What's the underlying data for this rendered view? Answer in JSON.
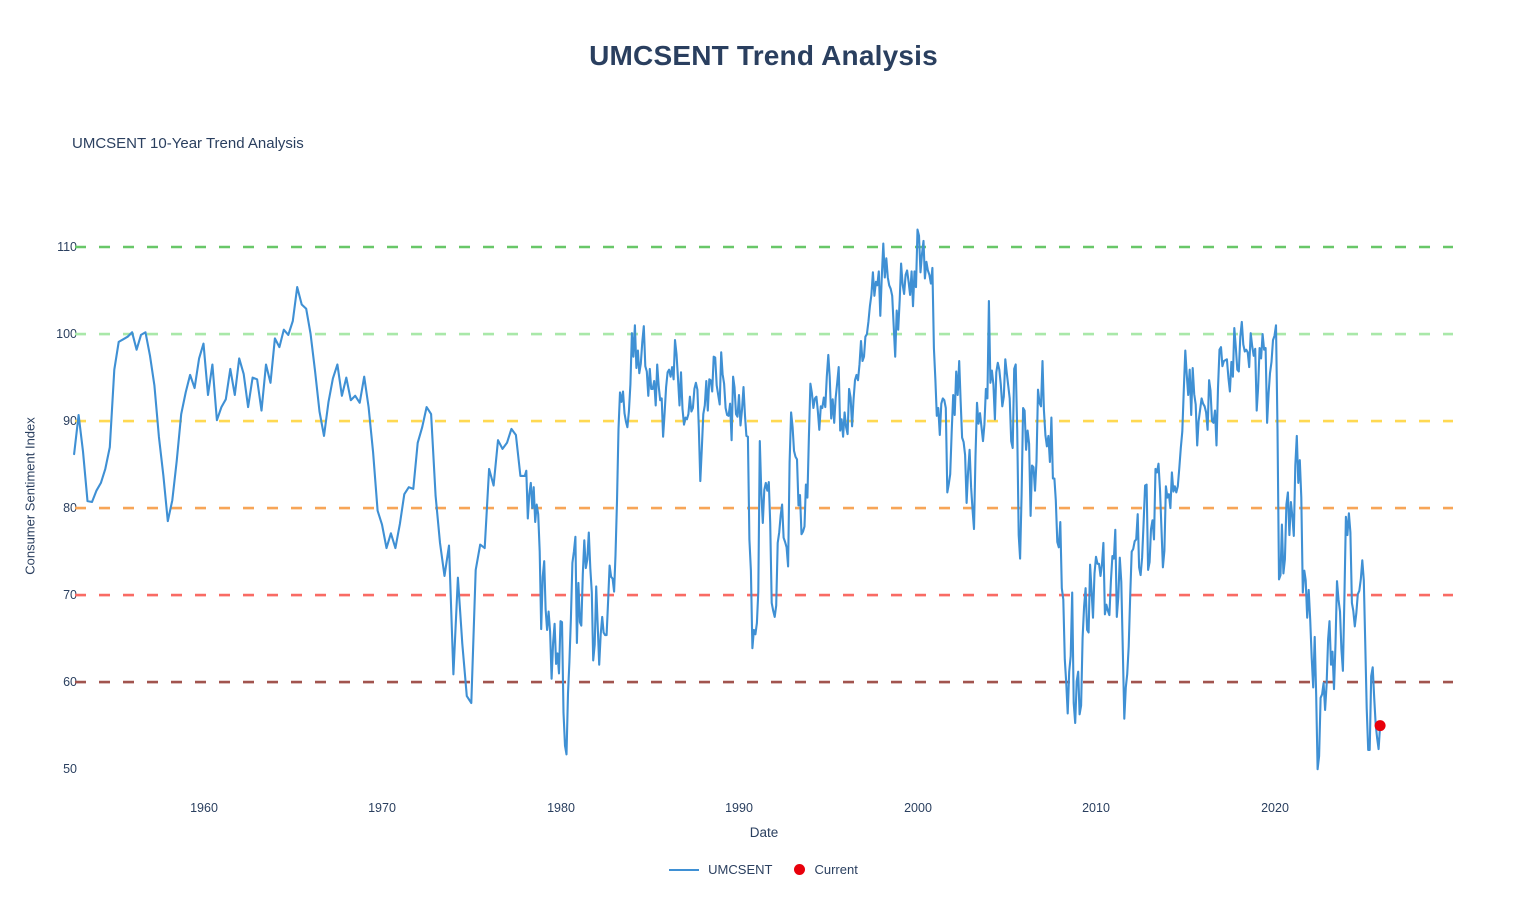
{
  "page": {
    "title": "UMCSENT Trend Analysis"
  },
  "chart": {
    "subtitle": "UMCSENT 10-Year Trend Analysis",
    "x_axis_label": "Date",
    "y_axis_label": "Consumer Sentiment Index"
  },
  "legend": {
    "series_label": "UMCSENT",
    "current_label": "Current"
  },
  "colors": {
    "title_text": "#2a3f5f",
    "tick_text": "#2a3f5f",
    "series_line": "#3f90d4",
    "current_dot": "#e8000b",
    "background": "#ffffff"
  },
  "chart_data": {
    "type": "line",
    "title": "UMCSENT 10-Year Trend Analysis",
    "xlabel": "Date",
    "ylabel": "Consumer Sentiment Index",
    "grid": false,
    "legend_position": "bottom-center",
    "x_ticks": [
      1960,
      1970,
      1980,
      1990,
      2000,
      2010,
      2020
    ],
    "y_ticks": [
      50,
      60,
      70,
      80,
      90,
      100,
      110
    ],
    "axes": {
      "x_min": 1952.8,
      "x_max": 2030.0,
      "y_min": 46.8,
      "y_max": 114.6
    },
    "reference_lines": [
      {
        "value": 110,
        "color": "#68c768"
      },
      {
        "value": 100,
        "color": "#a9e8a9"
      },
      {
        "value": 90,
        "color": "#ffd952"
      },
      {
        "value": 80,
        "color": "#f7a557"
      },
      {
        "value": 70,
        "color": "#f96b64"
      },
      {
        "value": 60,
        "color": "#a1544e"
      }
    ],
    "series": [
      {
        "name": "UMCSENT",
        "color": "#3f90d4",
        "quarterly": {
          "1952": [
            null,
            null,
            null,
            86.2
          ],
          "1953": [
            90.7,
            86.5,
            80.8,
            80.7
          ],
          "1954": [
            82.0,
            82.9,
            84.5,
            87.0
          ],
          "1955": [
            95.9,
            99.1,
            99.4,
            99.7
          ],
          "1956": [
            100.2,
            98.2,
            99.9,
            100.2
          ],
          "1957": [
            97.5,
            94.1,
            88.2,
            83.7
          ],
          "1958": [
            78.5,
            80.9,
            85.4,
            90.8
          ],
          "1959": [
            93.3,
            95.3,
            93.8,
            97.2
          ],
          "1960": [
            98.9,
            93.0,
            96.5,
            90.1
          ],
          "1961": [
            91.6,
            92.5,
            96.0,
            93.0
          ],
          "1962": [
            97.2,
            95.4,
            91.6,
            95.0
          ],
          "1963": [
            94.8,
            91.2,
            96.5,
            94.4
          ],
          "1964": [
            99.5,
            98.5,
            100.5,
            99.9
          ],
          "1965": [
            101.5,
            105.4,
            103.4,
            102.9
          ],
          "1966": [
            100.0,
            95.7,
            91.1,
            88.3
          ],
          "1967": [
            92.2,
            94.9,
            96.5,
            92.9
          ],
          "1968": [
            95.0,
            92.4,
            92.9,
            92.1
          ],
          "1969": [
            95.1,
            91.6,
            86.4,
            79.7
          ],
          "1970": [
            78.1,
            75.4,
            77.1,
            75.4
          ],
          "1971": [
            78.2,
            81.6,
            82.4,
            82.2
          ],
          "1972": [
            87.5,
            89.3,
            91.6,
            90.8
          ],
          "1973": [
            81.4,
            76.0,
            72.2,
            75.7
          ],
          "1974": [
            60.9,
            72.0,
            64.4,
            58.4
          ],
          "1975": [
            57.6,
            72.9,
            75.8,
            75.4
          ],
          "1976": [
            84.5,
            82.6,
            87.8,
            86.8
          ],
          "1977": [
            87.5,
            89.1,
            88.4,
            83.7
          ]
        },
        "monthly": {
          "1978": [
            83.7,
            84.3,
            78.8,
            81.6,
            82.9,
            80.0,
            82.4,
            78.4,
            80.4,
            79.3,
            75.0,
            66.1
          ],
          "1979": [
            72.1,
            73.9,
            68.4,
            66.0,
            68.1,
            65.8,
            60.4,
            64.5,
            66.7,
            62.1,
            63.3,
            61.0
          ],
          "1980": [
            67.0,
            66.9,
            56.5,
            52.7,
            51.7,
            58.7,
            62.3,
            67.3,
            73.7,
            75.0,
            76.7,
            64.5
          ],
          "1981": [
            71.4,
            66.9,
            66.5,
            72.4,
            76.3,
            73.1,
            74.1,
            77.2,
            73.1,
            70.3,
            62.5,
            64.3
          ],
          "1982": [
            71.0,
            66.5,
            62.0,
            65.5,
            67.5,
            65.7,
            65.4,
            65.4,
            69.3,
            73.4,
            72.1,
            71.9
          ],
          "1983": [
            70.4,
            74.6,
            80.8,
            89.1,
            93.3,
            92.2,
            93.4,
            90.9,
            89.9,
            89.3,
            91.1,
            94.2
          ],
          "1984": [
            100.1,
            97.4,
            101.0,
            96.1,
            98.1,
            95.5,
            96.6,
            99.1,
            100.9,
            96.3,
            95.7,
            92.9
          ],
          "1985": [
            96.0,
            93.7,
            93.7,
            94.6,
            91.8,
            96.5,
            94.0,
            92.4,
            92.6,
            88.2,
            90.9,
            93.9
          ],
          "1986": [
            95.6,
            95.9,
            95.1,
            96.2,
            94.8,
            99.3,
            97.7,
            94.9,
            91.8,
            95.6,
            91.4,
            89.6
          ],
          "1987": [
            90.4,
            90.2,
            90.8,
            92.8,
            91.1,
            91.5,
            93.7,
            94.4,
            93.6,
            89.3,
            83.1,
            86.8
          ],
          "1988": [
            90.8,
            91.8,
            94.6,
            91.2,
            94.8,
            94.7,
            93.4,
            97.4,
            97.3,
            94.1,
            93.0,
            91.9
          ],
          "1989": [
            97.9,
            95.4,
            94.3,
            91.5,
            90.7,
            90.6,
            92.0,
            87.8,
            95.1,
            93.9,
            90.8,
            90.5
          ],
          "1990": [
            93.0,
            89.5,
            91.3,
            93.9,
            90.6,
            88.3,
            88.2,
            76.4,
            72.8,
            63.9,
            66.0,
            65.5
          ],
          "1991": [
            66.8,
            70.4,
            87.7,
            81.8,
            78.3,
            82.1,
            82.9,
            82.0,
            83.0,
            78.3,
            69.1,
            68.2
          ],
          "1992": [
            67.5,
            68.8,
            76.0,
            77.2,
            79.2,
            80.4,
            76.6,
            76.1,
            75.5,
            73.3,
            85.3,
            91.0
          ],
          "1993": [
            89.3,
            86.6,
            85.9,
            85.6,
            80.3,
            81.5,
            77.0,
            77.3,
            77.9,
            82.7,
            81.2,
            88.2
          ],
          "1994": [
            94.3,
            93.2,
            91.5,
            92.6,
            92.8,
            91.2,
            89.0,
            91.7,
            91.5,
            92.7,
            91.6,
            95.1
          ],
          "1995": [
            97.6,
            95.1,
            90.3,
            92.5,
            89.8,
            92.7,
            94.4,
            96.2,
            88.9,
            90.2,
            88.2,
            91.0
          ],
          "1996": [
            89.3,
            88.5,
            93.7,
            92.7,
            89.4,
            92.4,
            94.7,
            95.3,
            94.7,
            96.5,
            99.2,
            96.9
          ],
          "1997": [
            97.4,
            99.7,
            100.0,
            101.4,
            103.2,
            104.5,
            107.1,
            104.4,
            106.0,
            105.6,
            107.2,
            102.1
          ],
          "1998": [
            106.6,
            110.4,
            106.5,
            108.7,
            106.5,
            105.6,
            105.2,
            104.4,
            100.9,
            97.4,
            102.7,
            100.5
          ],
          "1999": [
            103.9,
            108.1,
            105.7,
            104.6,
            106.8,
            107.3,
            106.0,
            104.5,
            107.2,
            103.2,
            107.2,
            105.4
          ],
          "2000": [
            112.0,
            111.3,
            107.1,
            109.2,
            110.7,
            106.4,
            108.3,
            107.3,
            106.8,
            105.8,
            107.6,
            98.4
          ],
          "2001": [
            94.7,
            90.6,
            91.5,
            88.4,
            92.0,
            92.6,
            92.4,
            91.5,
            81.8,
            82.7,
            83.9,
            88.8
          ],
          "2002": [
            93.0,
            90.7,
            95.7,
            93.0,
            96.9,
            92.4,
            88.1,
            87.6,
            86.1,
            80.6,
            84.2,
            86.7
          ],
          "2003": [
            82.4,
            79.9,
            77.6,
            86.0,
            92.1,
            89.7,
            90.9,
            89.3,
            87.7,
            89.6,
            93.7,
            92.6
          ],
          "2004": [
            103.8,
            94.4,
            95.8,
            94.2,
            90.2,
            95.6,
            96.7,
            95.9,
            94.2,
            91.7,
            92.8,
            97.1
          ],
          "2005": [
            95.5,
            94.1,
            92.6,
            87.7,
            86.9,
            96.0,
            96.5,
            89.1,
            76.9,
            74.2,
            81.6,
            91.5
          ],
          "2006": [
            91.2,
            86.7,
            88.9,
            87.4,
            79.1,
            84.9,
            84.7,
            82.0,
            85.4,
            93.6,
            92.1,
            91.7
          ],
          "2007": [
            96.9,
            91.3,
            88.4,
            87.1,
            88.3,
            85.3,
            90.4,
            83.4,
            83.4,
            80.9,
            76.1,
            75.5
          ],
          "2008": [
            78.4,
            70.8,
            69.5,
            62.6,
            59.8,
            56.4,
            61.2,
            63.0,
            70.3,
            57.6,
            55.3,
            60.1
          ],
          "2009": [
            61.2,
            56.3,
            57.3,
            65.1,
            68.7,
            70.8,
            66.0,
            65.7,
            73.5,
            70.6,
            67.4,
            72.5
          ],
          "2010": [
            74.4,
            73.6,
            73.6,
            72.2,
            73.6,
            76.0,
            67.8,
            68.9,
            68.2,
            67.7,
            71.6,
            74.5
          ],
          "2011": [
            74.2,
            77.5,
            67.5,
            69.8,
            74.3,
            71.5,
            63.7,
            55.8,
            59.4,
            60.9,
            64.1,
            69.9
          ],
          "2012": [
            75.0,
            75.3,
            76.2,
            76.4,
            79.3,
            73.2,
            72.3,
            74.3,
            78.3,
            82.6,
            82.7,
            72.9
          ],
          "2013": [
            73.8,
            77.6,
            78.6,
            76.4,
            84.5,
            84.1,
            85.1,
            82.1,
            77.5,
            73.2,
            75.1,
            82.5
          ],
          "2014": [
            81.2,
            81.6,
            80.0,
            84.1,
            81.9,
            82.5,
            81.8,
            82.5,
            84.6,
            86.9,
            88.8,
            93.6
          ],
          "2015": [
            98.1,
            95.4,
            93.0,
            95.9,
            90.7,
            96.1,
            93.1,
            91.9,
            87.2,
            90.0,
            91.3,
            92.6
          ],
          "2016": [
            92.0,
            91.7,
            91.0,
            89.0,
            94.7,
            93.5,
            90.0,
            89.8,
            91.2,
            87.2,
            93.8,
            98.2
          ],
          "2017": [
            98.5,
            96.3,
            96.9,
            97.0,
            97.1,
            95.0,
            93.4,
            96.8,
            95.1,
            100.7,
            98.5,
            95.9
          ],
          "2018": [
            95.7,
            99.7,
            101.4,
            98.8,
            98.0,
            98.2,
            97.9,
            96.2,
            100.1,
            98.6,
            97.5,
            98.3
          ],
          "2019": [
            91.2,
            93.8,
            98.4,
            97.2,
            100.0,
            98.2,
            98.4,
            89.8,
            93.2,
            95.5,
            96.8,
            99.3
          ],
          "2020": [
            99.8,
            101.0,
            89.1,
            71.8,
            72.3,
            78.1,
            72.5,
            74.1,
            80.4,
            81.8,
            76.9,
            80.7
          ],
          "2021": [
            79.0,
            76.8,
            84.9,
            88.3,
            82.9,
            85.5,
            81.2,
            70.3,
            72.8,
            71.7,
            67.4,
            70.6
          ],
          "2022": [
            67.2,
            62.8,
            59.4,
            65.2,
            58.4,
            50.0,
            51.5,
            58.2,
            58.6,
            59.9,
            56.8,
            59.7
          ],
          "2023": [
            64.9,
            67.0,
            62.0,
            63.5,
            59.2,
            64.4,
            71.6,
            69.5,
            68.1,
            63.8,
            61.3,
            69.7
          ],
          "2024": [
            79.0,
            76.9,
            79.4,
            77.2,
            69.1,
            68.2,
            66.4,
            67.9,
            70.1,
            70.5,
            71.8,
            74.0
          ],
          "2025": [
            71.7,
            64.7,
            57.0,
            52.2,
            52.2,
            60.7,
            61.7,
            58.2,
            55.1,
            53.6,
            52.3,
            55.0
          ]
        }
      }
    ],
    "current": {
      "name": "Current",
      "x": 2025.917,
      "y": 55.0,
      "color": "#e8000b"
    }
  }
}
